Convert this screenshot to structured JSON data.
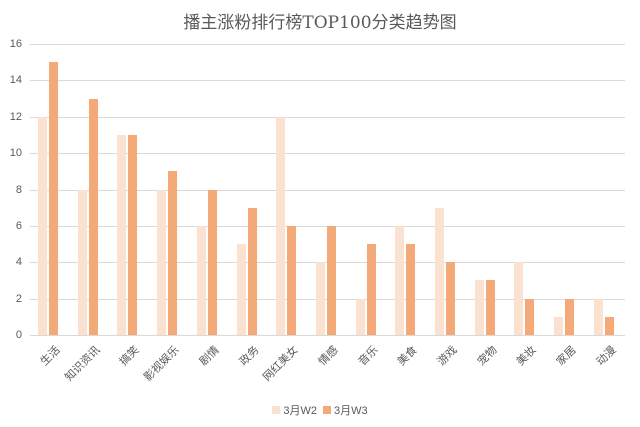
{
  "chart_data": {
    "type": "bar",
    "title": "播主涨粉排行榜TOP100分类趋势图",
    "xlabel": "",
    "ylabel": "",
    "ylim": [
      0,
      16
    ],
    "yticks": [
      0,
      2,
      4,
      6,
      8,
      10,
      12,
      14,
      16
    ],
    "grid": true,
    "legend_position": "bottom",
    "categories": [
      "生活",
      "知识资讯",
      "搞笑",
      "影视娱乐",
      "剧情",
      "政务",
      "网红美女",
      "情感",
      "音乐",
      "美食",
      "游戏",
      "宠物",
      "美妆",
      "家居",
      "动漫"
    ],
    "series": [
      {
        "name": "3月W2",
        "color": "#fbe2d0",
        "values": [
          12,
          8,
          11,
          8,
          6,
          5,
          12,
          4,
          2,
          6,
          7,
          3,
          4,
          1,
          2
        ]
      },
      {
        "name": "3月W3",
        "color": "#f4aa78",
        "values": [
          15,
          13,
          11,
          9,
          8,
          7,
          6,
          6,
          5,
          5,
          4,
          3,
          2,
          2,
          1
        ]
      }
    ]
  }
}
